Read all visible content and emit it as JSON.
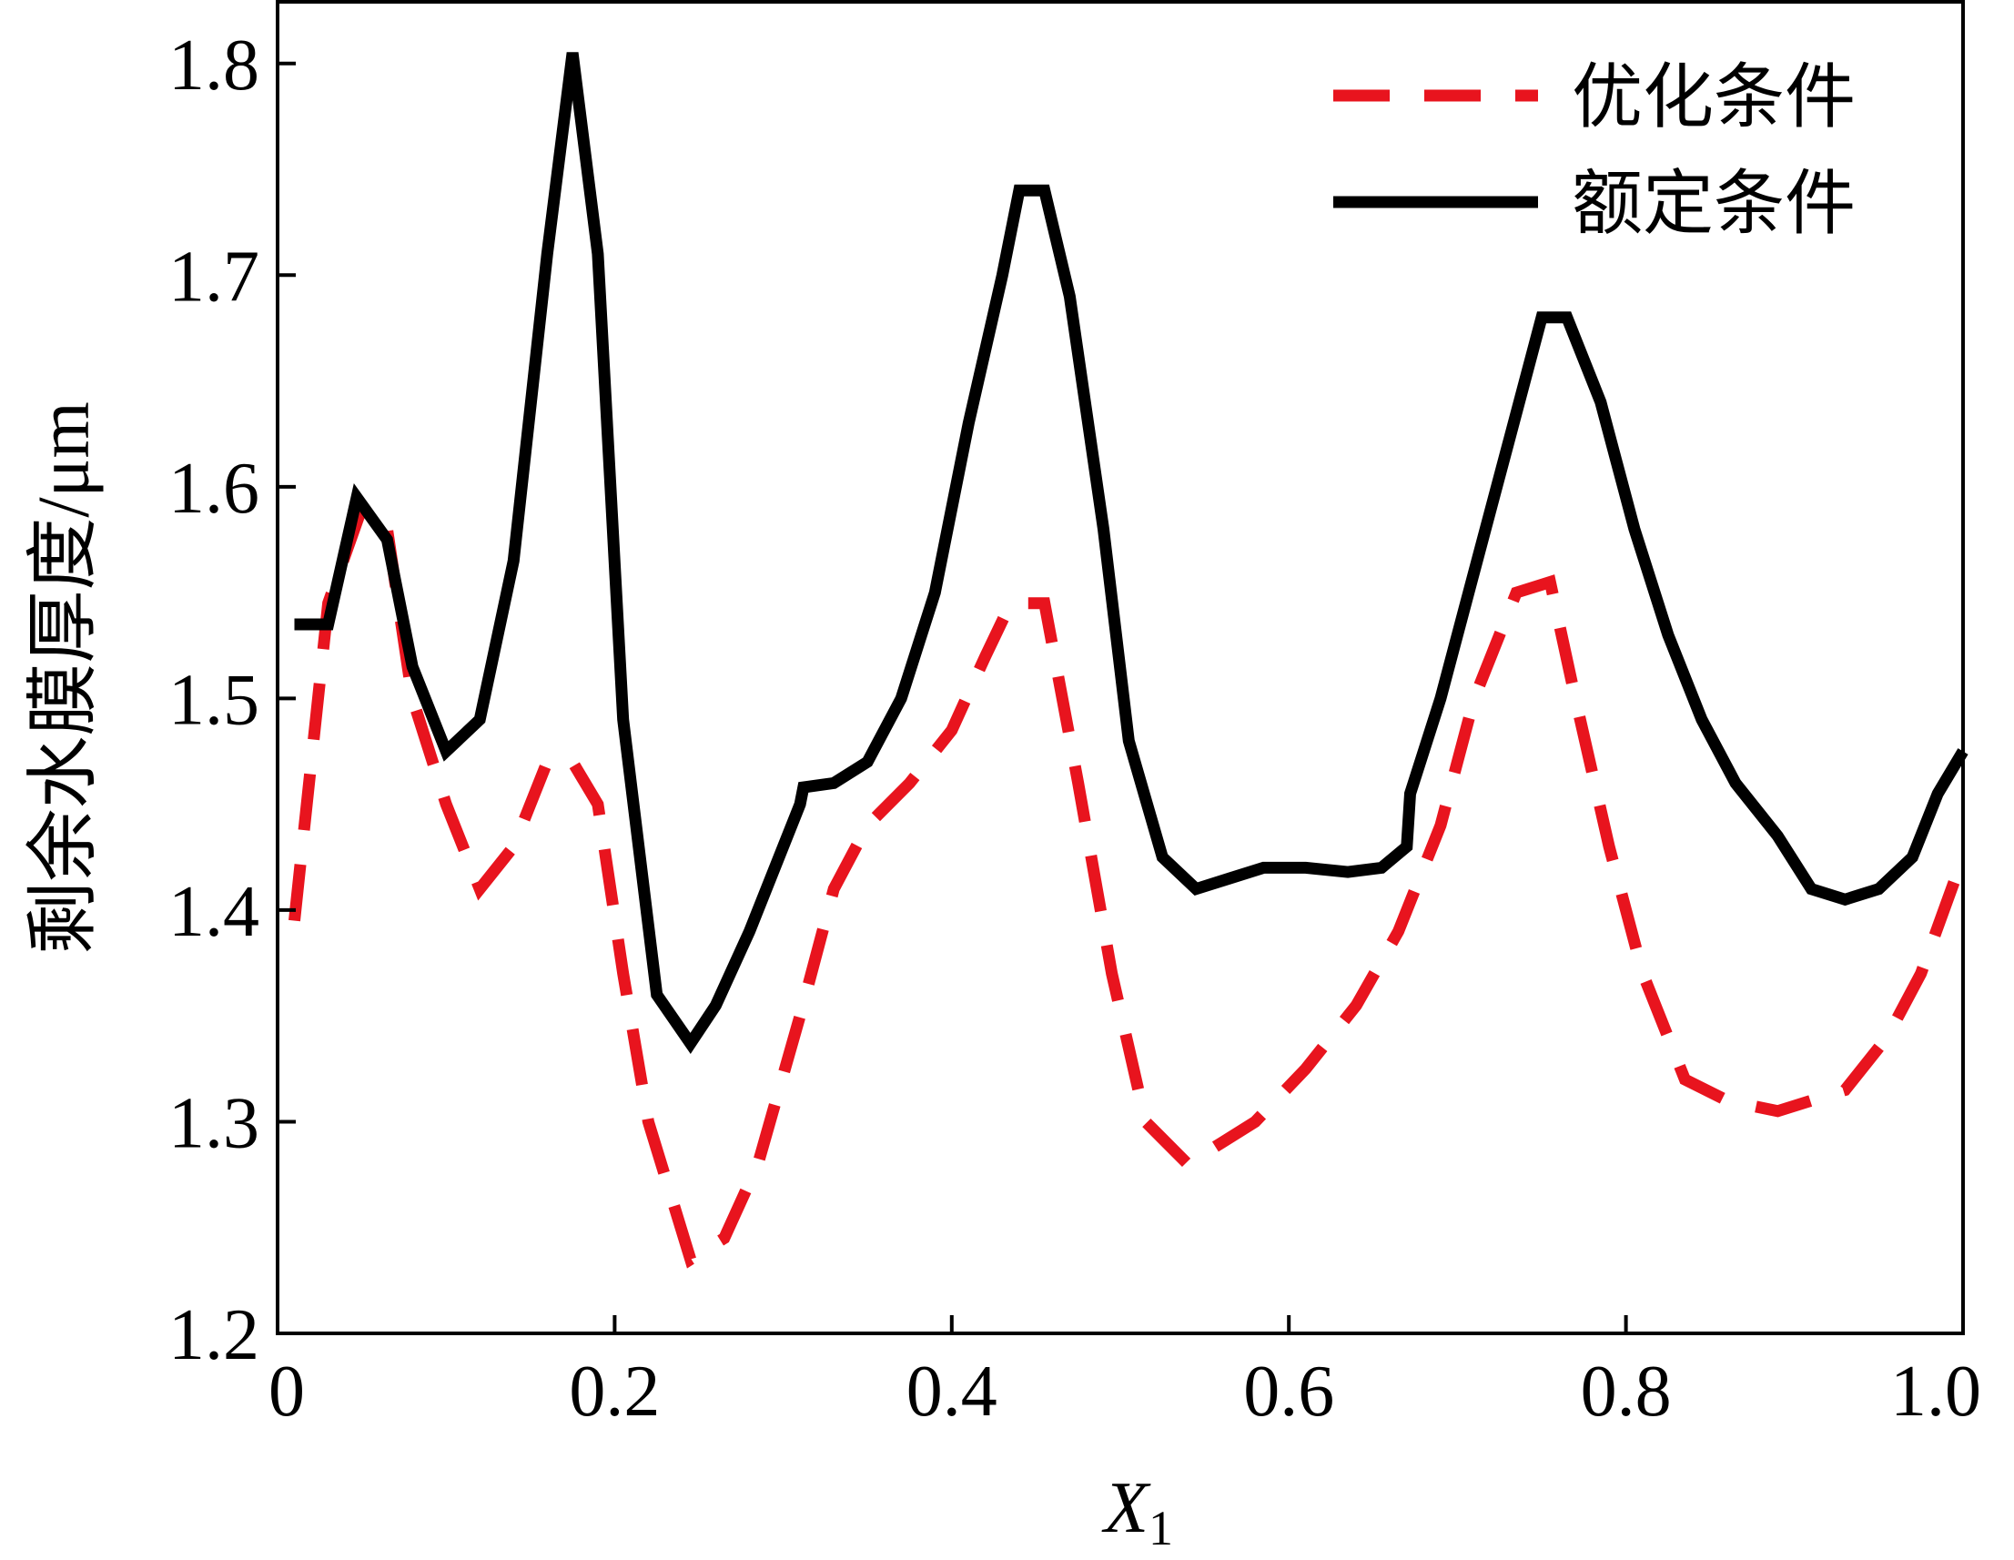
{
  "chart_data": {
    "type": "line",
    "xlabel": "X",
    "xlabel_sub": "1",
    "ylabel": "剩余水膜厚度/μm",
    "xlim": [
      0,
      1.0
    ],
    "ylim": [
      1.2,
      1.83
    ],
    "xticks": [
      0,
      0.2,
      0.4,
      0.6,
      0.8,
      1.0
    ],
    "xtick_labels": [
      "0",
      "0.2",
      "0.4",
      "0.6",
      "0.8",
      "1.0"
    ],
    "yticks": [
      1.2,
      1.3,
      1.4,
      1.5,
      1.6,
      1.7,
      1.8
    ],
    "ytick_labels": [
      "1.2",
      "1.3",
      "1.4",
      "1.5",
      "1.6",
      "1.7",
      "1.8"
    ],
    "grid": false,
    "legend_position": "top-right",
    "series": [
      {
        "name": "优化条件",
        "color": "#e8141e",
        "style": "dashed",
        "x": [
          0.01,
          0.03,
          0.05,
          0.065,
          0.08,
          0.1,
          0.12,
          0.14,
          0.16,
          0.175,
          0.19,
          0.205,
          0.22,
          0.245,
          0.265,
          0.285,
          0.31,
          0.33,
          0.35,
          0.375,
          0.4,
          0.42,
          0.435,
          0.455,
          0.475,
          0.495,
          0.515,
          0.54,
          0.56,
          0.58,
          0.61,
          0.64,
          0.665,
          0.69,
          0.71,
          0.735,
          0.755,
          0.77,
          0.79,
          0.81,
          0.835,
          0.86,
          0.89,
          0.91,
          0.93,
          0.955,
          0.975,
          1.0
        ],
        "y": [
          1.395,
          1.545,
          1.59,
          1.58,
          1.5,
          1.45,
          1.41,
          1.43,
          1.47,
          1.47,
          1.45,
          1.37,
          1.3,
          1.235,
          1.245,
          1.28,
          1.35,
          1.41,
          1.44,
          1.46,
          1.485,
          1.52,
          1.545,
          1.545,
          1.46,
          1.37,
          1.3,
          1.28,
          1.29,
          1.3,
          1.325,
          1.355,
          1.39,
          1.44,
          1.5,
          1.55,
          1.555,
          1.5,
          1.43,
          1.37,
          1.32,
          1.31,
          1.305,
          1.31,
          1.315,
          1.34,
          1.37,
          1.425
        ]
      },
      {
        "name": "额定条件",
        "color": "#000000",
        "style": "solid",
        "x": [
          0.01,
          0.03,
          0.047,
          0.065,
          0.08,
          0.1,
          0.12,
          0.14,
          0.16,
          0.175,
          0.19,
          0.205,
          0.225,
          0.245,
          0.26,
          0.28,
          0.3,
          0.31,
          0.312,
          0.33,
          0.35,
          0.37,
          0.39,
          0.41,
          0.43,
          0.44,
          0.455,
          0.47,
          0.49,
          0.505,
          0.525,
          0.545,
          0.565,
          0.585,
          0.61,
          0.635,
          0.655,
          0.67,
          0.672,
          0.69,
          0.71,
          0.73,
          0.75,
          0.765,
          0.785,
          0.805,
          0.825,
          0.845,
          0.865,
          0.89,
          0.91,
          0.93,
          0.95,
          0.97,
          0.985,
          1.0
        ],
        "y": [
          1.535,
          1.535,
          1.595,
          1.575,
          1.515,
          1.475,
          1.49,
          1.565,
          1.71,
          1.805,
          1.71,
          1.49,
          1.36,
          1.337,
          1.355,
          1.39,
          1.43,
          1.45,
          1.458,
          1.46,
          1.47,
          1.5,
          1.55,
          1.63,
          1.7,
          1.74,
          1.74,
          1.69,
          1.58,
          1.48,
          1.425,
          1.41,
          1.415,
          1.42,
          1.42,
          1.418,
          1.42,
          1.43,
          1.455,
          1.5,
          1.56,
          1.62,
          1.68,
          1.68,
          1.64,
          1.58,
          1.53,
          1.49,
          1.46,
          1.435,
          1.41,
          1.405,
          1.41,
          1.425,
          1.455,
          1.475
        ]
      }
    ]
  }
}
